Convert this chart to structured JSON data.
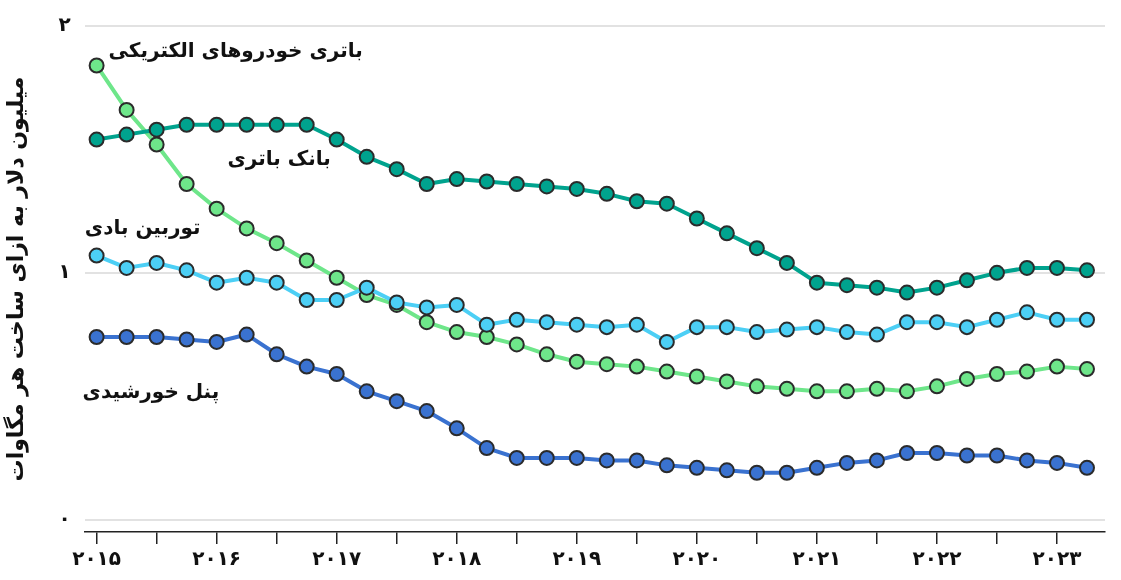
{
  "chart_data": {
    "type": "line",
    "ylabel": "میلیون دلار به ازای ساخت هر مگاوات",
    "x": [
      2015,
      2015.25,
      2015.5,
      2015.75,
      2016,
      2016.25,
      2016.5,
      2016.75,
      2017,
      2017.25,
      2017.5,
      2017.75,
      2018,
      2018.25,
      2018.5,
      2018.75,
      2019,
      2019.25,
      2019.5,
      2019.75,
      2020,
      2020.25,
      2020.5,
      2020.75,
      2021,
      2021.25,
      2021.5,
      2021.75,
      2022,
      2022.25,
      2022.5,
      2022.75,
      2023,
      2023.25
    ],
    "series": [
      {
        "name": "باتری خودروهای الکتریکی",
        "color": "#6ee68a",
        "values": [
          1.84,
          1.66,
          1.52,
          1.36,
          1.26,
          1.18,
          1.12,
          1.05,
          0.98,
          0.91,
          0.87,
          0.8,
          0.76,
          0.74,
          0.71,
          0.67,
          0.64,
          0.63,
          0.62,
          0.6,
          0.58,
          0.56,
          0.54,
          0.53,
          0.52,
          0.52,
          0.53,
          0.52,
          0.54,
          0.57,
          0.59,
          0.6,
          0.62,
          0.61
        ]
      },
      {
        "name": "بانک باتری",
        "color": "#00a38e",
        "values": [
          1.54,
          1.56,
          1.58,
          1.6,
          1.6,
          1.6,
          1.6,
          1.6,
          1.54,
          1.47,
          1.42,
          1.36,
          1.38,
          1.37,
          1.36,
          1.35,
          1.34,
          1.32,
          1.29,
          1.28,
          1.22,
          1.16,
          1.1,
          1.04,
          0.96,
          0.95,
          0.94,
          0.92,
          0.94,
          0.97,
          1.0,
          1.02,
          1.02,
          1.01
        ]
      },
      {
        "name": "توربین بادی",
        "color": "#4ccff5",
        "values": [
          1.07,
          1.02,
          1.04,
          1.01,
          0.96,
          0.98,
          0.96,
          0.89,
          0.89,
          0.94,
          0.88,
          0.86,
          0.87,
          0.79,
          0.81,
          0.8,
          0.79,
          0.78,
          0.79,
          0.72,
          0.78,
          0.78,
          0.76,
          0.77,
          0.78,
          0.76,
          0.75,
          0.8,
          0.8,
          0.78,
          0.81,
          0.84,
          0.81,
          0.81
        ]
      },
      {
        "name": "پنل خورشیدی",
        "color": "#3a72d0",
        "values": [
          0.74,
          0.74,
          0.74,
          0.73,
          0.72,
          0.75,
          0.67,
          0.62,
          0.59,
          0.52,
          0.48,
          0.44,
          0.37,
          0.29,
          0.25,
          0.25,
          0.25,
          0.24,
          0.24,
          0.22,
          0.21,
          0.2,
          0.19,
          0.19,
          0.21,
          0.23,
          0.24,
          0.27,
          0.27,
          0.26,
          0.26,
          0.24,
          0.23,
          0.21
        ]
      }
    ],
    "xlim": [
      2014.9,
      2023.4
    ],
    "xticks": [
      {
        "value": 2015,
        "label": "۲۰۱۵"
      },
      {
        "value": 2015.5,
        "label": null
      },
      {
        "value": 2016,
        "label": "۲۰۱۶"
      },
      {
        "value": 2016.5,
        "label": null
      },
      {
        "value": 2017,
        "label": "۲۰۱۷"
      },
      {
        "value": 2017.5,
        "label": null
      },
      {
        "value": 2018,
        "label": "۲۰۱۸"
      },
      {
        "value": 2018.5,
        "label": null
      },
      {
        "value": 2019,
        "label": "۲۰۱۹"
      },
      {
        "value": 2019.5,
        "label": null
      },
      {
        "value": 2020,
        "label": "۲۰۲۰"
      },
      {
        "value": 2020.5,
        "label": null
      },
      {
        "value": 2021,
        "label": "۲۰۲۱"
      },
      {
        "value": 2021.5,
        "label": null
      },
      {
        "value": 2022,
        "label": "۲۰۲۲"
      },
      {
        "value": 2022.5,
        "label": null
      },
      {
        "value": 2023,
        "label": "۲۰۲۳"
      }
    ],
    "ylim": [
      -0.05,
      2
    ],
    "yticks": [
      {
        "value": 0,
        "label": "۰"
      },
      {
        "value": 1,
        "label": "۱"
      },
      {
        "value": 2,
        "label": "۲"
      }
    ],
    "grid": "y",
    "marker": "circle",
    "line_style": "solid",
    "legend": false
  }
}
